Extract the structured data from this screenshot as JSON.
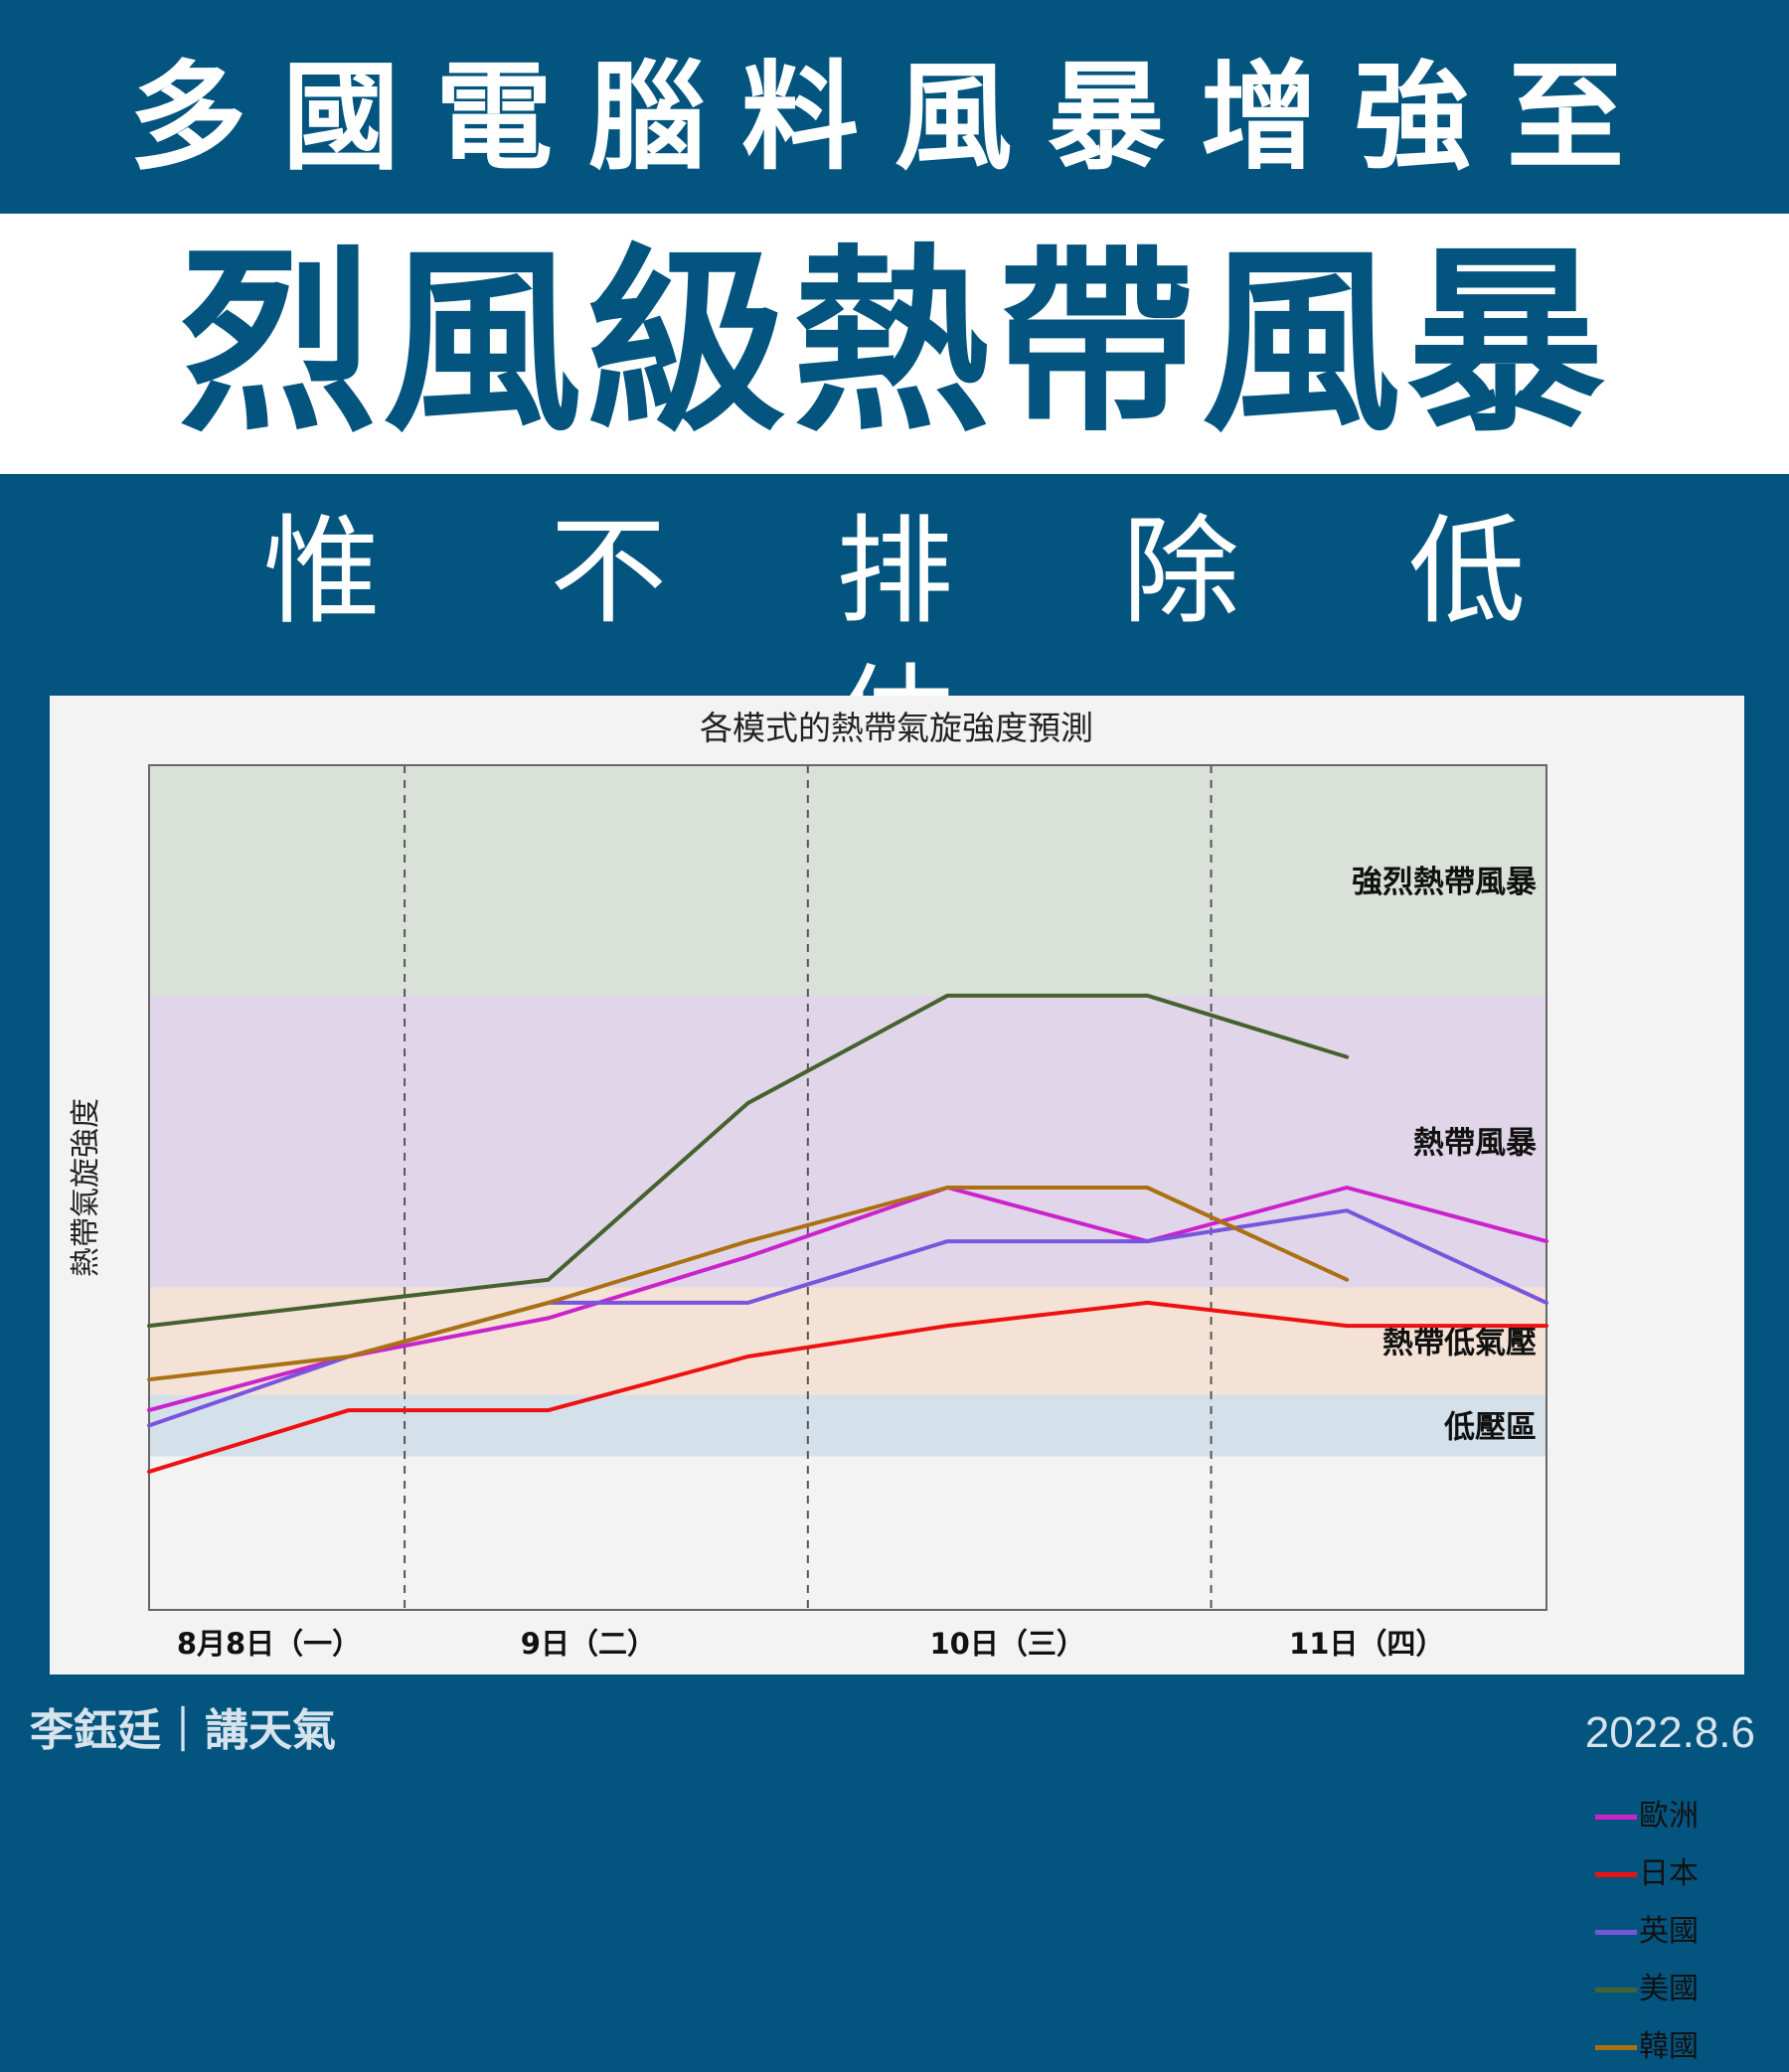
{
  "header": {
    "line1": "多國電腦料風暴增強至",
    "line2": "烈風級熱帶風暴",
    "line3": "惟不排除低估"
  },
  "footer": {
    "author": "李鈺廷｜講天氣",
    "date": "2022.8.6"
  },
  "colors": {
    "background": "#03557f",
    "headline_white_band": "#ffffff",
    "headline_blue_text": "#03557f"
  },
  "chart_data": {
    "type": "line",
    "title": "各模式的熱帶氣旋強度預測",
    "ylabel": "熱帶氣旋強度",
    "xlabel": "",
    "x": [
      0,
      1,
      2,
      3,
      4,
      5,
      6,
      7
    ],
    "xlim": [
      0,
      7
    ],
    "ylim": [
      0,
      5.5
    ],
    "x_tick_labels": [
      {
        "x": 0.6,
        "label": "8月8日（一）"
      },
      {
        "x": 2.2,
        "label": "9日（二）"
      },
      {
        "x": 4.3,
        "label": "10日（三）"
      },
      {
        "x": 6.1,
        "label": "11日（四）"
      }
    ],
    "day_dividers": [
      1.28,
      3.3,
      5.32
    ],
    "intensity_bands": [
      {
        "label": "低壓區",
        "from": 1.0,
        "to": 1.4,
        "color": "#d4e0ea"
      },
      {
        "label": "熱帶低氣壓",
        "from": 1.4,
        "to": 2.1,
        "color": "#f3e2d5"
      },
      {
        "label": "熱帶風暴",
        "from": 2.1,
        "to": 4.0,
        "color": "#e1d6e9"
      },
      {
        "label": "強烈熱帶風暴",
        "from": 4.0,
        "to": 5.5,
        "color": "#d9e1d8"
      }
    ],
    "series": [
      {
        "name": "歐洲",
        "color": "#cc22cc",
        "values": [
          1.3,
          1.65,
          1.9,
          2.3,
          2.75,
          2.4,
          2.75,
          2.4
        ]
      },
      {
        "name": "日本",
        "color": "#ee1111",
        "values": [
          0.9,
          1.3,
          1.3,
          1.65,
          1.85,
          2.0,
          1.85,
          1.85
        ]
      },
      {
        "name": "英國",
        "color": "#7755dd",
        "values": [
          1.2,
          1.65,
          2.0,
          2.0,
          2.4,
          2.4,
          2.6,
          2.0
        ]
      },
      {
        "name": "美國",
        "color": "#44612e",
        "values": [
          1.85,
          2.0,
          2.15,
          3.3,
          4.0,
          4.0,
          3.6,
          null
        ]
      },
      {
        "name": "韓國",
        "color": "#aa7011",
        "values": [
          1.5,
          1.65,
          2.0,
          2.4,
          2.75,
          2.75,
          2.15,
          null
        ]
      }
    ]
  }
}
